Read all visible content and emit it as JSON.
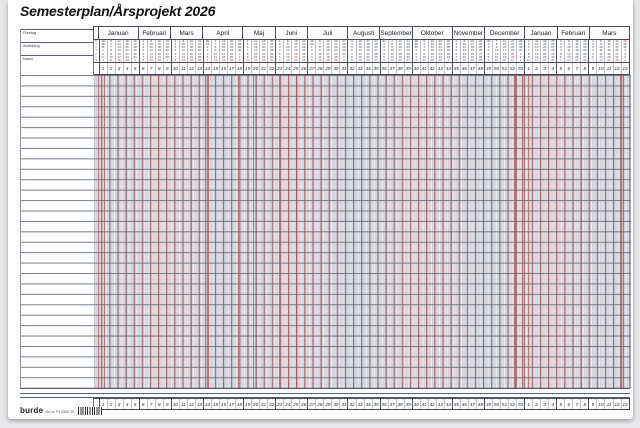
{
  "title": "Semesterplan/Årsprojekt 2026",
  "left_labels": [
    "Företag",
    "Avdelning",
    "Namn"
  ],
  "weekday_initials": [
    "M",
    "T",
    "O",
    "T",
    "F",
    "L",
    "S"
  ],
  "footer": {
    "brand": "burde",
    "artnr": "Art.nr P1 2660 26"
  },
  "colors": {
    "holiday_red": "#c0454d",
    "grid_line": "#596170",
    "saturday_shade": "#d6d9df",
    "sunday_shade": "#e4ced2"
  },
  "calendar": {
    "months": [
      {
        "label": "Januari",
        "weeks": 5
      },
      {
        "label": "Februari",
        "weeks": 4
      },
      {
        "label": "Mars",
        "weeks": 4
      },
      {
        "label": "April",
        "weeks": 5
      },
      {
        "label": "Maj",
        "weeks": 4
      },
      {
        "label": "Juni",
        "weeks": 4
      },
      {
        "label": "Juli",
        "weeks": 5
      },
      {
        "label": "Augusti",
        "weeks": 4
      },
      {
        "label": "September",
        "weeks": 4
      },
      {
        "label": "Oktober",
        "weeks": 5
      },
      {
        "label": "November",
        "weeks": 4
      },
      {
        "label": "December",
        "weeks": 5
      },
      {
        "label": "Januari",
        "weeks": 4
      },
      {
        "label": "Februari",
        "weeks": 4
      },
      {
        "label": "Mars",
        "weeks": 5
      }
    ],
    "weeks": [
      {
        "n": 1,
        "d": [
          "29",
          "30",
          "31",
          "1",
          "2",
          "3",
          "4"
        ],
        "r": [
          3,
          6
        ]
      },
      {
        "n": 2,
        "d": [
          "5",
          "6",
          "7",
          "8",
          "9",
          "10",
          "11"
        ],
        "r": [
          1,
          6
        ]
      },
      {
        "n": 3,
        "d": [
          "12",
          "13",
          "14",
          "15",
          "16",
          "17",
          "18"
        ],
        "r": [
          6
        ]
      },
      {
        "n": 4,
        "d": [
          "19",
          "20",
          "21",
          "22",
          "23",
          "24",
          "25"
        ],
        "r": [
          6
        ]
      },
      {
        "n": 5,
        "d": [
          "26",
          "27",
          "28",
          "29",
          "30",
          "31",
          "1"
        ],
        "r": [
          6
        ]
      },
      {
        "n": 6,
        "d": [
          "2",
          "3",
          "4",
          "5",
          "6",
          "7",
          "8"
        ],
        "r": [
          6
        ]
      },
      {
        "n": 7,
        "d": [
          "9",
          "10",
          "11",
          "12",
          "13",
          "14",
          "15"
        ],
        "r": [
          6
        ]
      },
      {
        "n": 8,
        "d": [
          "16",
          "17",
          "18",
          "19",
          "20",
          "21",
          "22"
        ],
        "r": [
          6
        ]
      },
      {
        "n": 9,
        "d": [
          "23",
          "24",
          "25",
          "26",
          "27",
          "28",
          "1"
        ],
        "r": [
          6
        ]
      },
      {
        "n": 10,
        "d": [
          "2",
          "3",
          "4",
          "5",
          "6",
          "7",
          "8"
        ],
        "r": [
          6
        ]
      },
      {
        "n": 11,
        "d": [
          "9",
          "10",
          "11",
          "12",
          "13",
          "14",
          "15"
        ],
        "r": [
          6
        ]
      },
      {
        "n": 12,
        "d": [
          "16",
          "17",
          "18",
          "19",
          "20",
          "21",
          "22"
        ],
        "r": [
          6
        ]
      },
      {
        "n": 13,
        "d": [
          "23",
          "24",
          "25",
          "26",
          "27",
          "28",
          "29"
        ],
        "r": [
          6
        ]
      },
      {
        "n": 14,
        "d": [
          "30",
          "31",
          "1",
          "2",
          "3",
          "4",
          "5"
        ],
        "r": [
          4,
          6
        ]
      },
      {
        "n": 15,
        "d": [
          "6",
          "7",
          "8",
          "9",
          "10",
          "11",
          "12"
        ],
        "r": [
          0,
          6
        ]
      },
      {
        "n": 16,
        "d": [
          "13",
          "14",
          "15",
          "16",
          "17",
          "18",
          "19"
        ],
        "r": [
          6
        ]
      },
      {
        "n": 17,
        "d": [
          "20",
          "21",
          "22",
          "23",
          "24",
          "25",
          "26"
        ],
        "r": [
          6
        ]
      },
      {
        "n": 18,
        "d": [
          "27",
          "28",
          "29",
          "30",
          "1",
          "2",
          "3"
        ],
        "r": [
          4,
          6
        ]
      },
      {
        "n": 19,
        "d": [
          "4",
          "5",
          "6",
          "7",
          "8",
          "9",
          "10"
        ],
        "r": [
          6
        ]
      },
      {
        "n": 20,
        "d": [
          "11",
          "12",
          "13",
          "14",
          "15",
          "16",
          "17"
        ],
        "r": [
          3,
          6
        ]
      },
      {
        "n": 21,
        "d": [
          "18",
          "19",
          "20",
          "21",
          "22",
          "23",
          "24"
        ],
        "r": [
          6
        ]
      },
      {
        "n": 22,
        "d": [
          "25",
          "26",
          "27",
          "28",
          "29",
          "30",
          "31"
        ],
        "r": [
          6
        ]
      },
      {
        "n": 23,
        "d": [
          "1",
          "2",
          "3",
          "4",
          "5",
          "6",
          "7"
        ],
        "r": [
          5,
          6
        ]
      },
      {
        "n": 24,
        "d": [
          "8",
          "9",
          "10",
          "11",
          "12",
          "13",
          "14"
        ],
        "r": [
          6
        ]
      },
      {
        "n": 25,
        "d": [
          "15",
          "16",
          "17",
          "18",
          "19",
          "20",
          "21"
        ],
        "r": [
          5,
          6
        ]
      },
      {
        "n": 26,
        "d": [
          "22",
          "23",
          "24",
          "25",
          "26",
          "27",
          "28"
        ],
        "r": [
          6
        ]
      },
      {
        "n": 27,
        "d": [
          "29",
          "30",
          "1",
          "2",
          "3",
          "4",
          "5"
        ],
        "r": [
          6
        ]
      },
      {
        "n": 28,
        "d": [
          "6",
          "7",
          "8",
          "9",
          "10",
          "11",
          "12"
        ],
        "r": [
          6
        ]
      },
      {
        "n": 29,
        "d": [
          "13",
          "14",
          "15",
          "16",
          "17",
          "18",
          "19"
        ],
        "r": [
          6
        ]
      },
      {
        "n": 30,
        "d": [
          "20",
          "21",
          "22",
          "23",
          "24",
          "25",
          "26"
        ],
        "r": [
          6
        ]
      },
      {
        "n": 31,
        "d": [
          "27",
          "28",
          "29",
          "30",
          "31",
          "1",
          "2"
        ],
        "r": [
          6
        ]
      },
      {
        "n": 32,
        "d": [
          "3",
          "4",
          "5",
          "6",
          "7",
          "8",
          "9"
        ],
        "r": [
          6
        ]
      },
      {
        "n": 33,
        "d": [
          "10",
          "11",
          "12",
          "13",
          "14",
          "15",
          "16"
        ],
        "r": [
          6
        ]
      },
      {
        "n": 34,
        "d": [
          "17",
          "18",
          "19",
          "20",
          "21",
          "22",
          "23"
        ],
        "r": [
          6
        ]
      },
      {
        "n": 35,
        "d": [
          "24",
          "25",
          "26",
          "27",
          "28",
          "29",
          "30"
        ],
        "r": [
          6
        ]
      },
      {
        "n": 36,
        "d": [
          "31",
          "1",
          "2",
          "3",
          "4",
          "5",
          "6"
        ],
        "r": [
          6
        ]
      },
      {
        "n": 37,
        "d": [
          "7",
          "8",
          "9",
          "10",
          "11",
          "12",
          "13"
        ],
        "r": [
          6
        ]
      },
      {
        "n": 38,
        "d": [
          "14",
          "15",
          "16",
          "17",
          "18",
          "19",
          "20"
        ],
        "r": [
          6
        ]
      },
      {
        "n": 39,
        "d": [
          "21",
          "22",
          "23",
          "24",
          "25",
          "26",
          "27"
        ],
        "r": [
          6
        ]
      },
      {
        "n": 40,
        "d": [
          "28",
          "29",
          "30",
          "1",
          "2",
          "3",
          "4"
        ],
        "r": [
          6
        ]
      },
      {
        "n": 41,
        "d": [
          "5",
          "6",
          "7",
          "8",
          "9",
          "10",
          "11"
        ],
        "r": [
          6
        ]
      },
      {
        "n": 42,
        "d": [
          "12",
          "13",
          "14",
          "15",
          "16",
          "17",
          "18"
        ],
        "r": [
          6
        ]
      },
      {
        "n": 43,
        "d": [
          "19",
          "20",
          "21",
          "22",
          "23",
          "24",
          "25"
        ],
        "r": [
          6
        ]
      },
      {
        "n": 44,
        "d": [
          "26",
          "27",
          "28",
          "29",
          "30",
          "31",
          "1"
        ],
        "r": [
          6
        ]
      },
      {
        "n": 45,
        "d": [
          "2",
          "3",
          "4",
          "5",
          "6",
          "7",
          "8"
        ],
        "r": [
          6
        ]
      },
      {
        "n": 46,
        "d": [
          "9",
          "10",
          "11",
          "12",
          "13",
          "14",
          "15"
        ],
        "r": [
          6
        ]
      },
      {
        "n": 47,
        "d": [
          "16",
          "17",
          "18",
          "19",
          "20",
          "21",
          "22"
        ],
        "r": [
          6
        ]
      },
      {
        "n": 48,
        "d": [
          "23",
          "24",
          "25",
          "26",
          "27",
          "28",
          "29"
        ],
        "r": [
          6
        ]
      },
      {
        "n": 49,
        "d": [
          "30",
          "1",
          "2",
          "3",
          "4",
          "5",
          "6"
        ],
        "r": [
          6
        ]
      },
      {
        "n": 50,
        "d": [
          "7",
          "8",
          "9",
          "10",
          "11",
          "12",
          "13"
        ],
        "r": [
          6
        ]
      },
      {
        "n": 51,
        "d": [
          "14",
          "15",
          "16",
          "17",
          "18",
          "19",
          "20"
        ],
        "r": [
          6
        ]
      },
      {
        "n": 52,
        "d": [
          "21",
          "22",
          "23",
          "24",
          "25",
          "26",
          "27"
        ],
        "r": [
          4,
          5,
          6
        ]
      },
      {
        "n": 53,
        "d": [
          "28",
          "29",
          "30",
          "31",
          "1",
          "2",
          "3"
        ],
        "r": [
          4,
          6
        ]
      },
      {
        "n": 1,
        "d": [
          "4",
          "5",
          "6",
          "7",
          "8",
          "9",
          "10"
        ],
        "r": [
          2,
          6
        ]
      },
      {
        "n": 2,
        "d": [
          "11",
          "12",
          "13",
          "14",
          "15",
          "16",
          "17"
        ],
        "r": [
          6
        ]
      },
      {
        "n": 3,
        "d": [
          "18",
          "19",
          "20",
          "21",
          "22",
          "23",
          "24"
        ],
        "r": [
          6
        ]
      },
      {
        "n": 4,
        "d": [
          "25",
          "26",
          "27",
          "28",
          "29",
          "30",
          "31"
        ],
        "r": [
          6
        ]
      },
      {
        "n": 5,
        "d": [
          "1",
          "2",
          "3",
          "4",
          "5",
          "6",
          "7"
        ],
        "r": [
          6
        ]
      },
      {
        "n": 6,
        "d": [
          "8",
          "9",
          "10",
          "11",
          "12",
          "13",
          "14"
        ],
        "r": [
          6
        ]
      },
      {
        "n": 7,
        "d": [
          "15",
          "16",
          "17",
          "18",
          "19",
          "20",
          "21"
        ],
        "r": [
          6
        ]
      },
      {
        "n": 8,
        "d": [
          "22",
          "23",
          "24",
          "25",
          "26",
          "27",
          "28"
        ],
        "r": [
          6
        ]
      },
      {
        "n": 9,
        "d": [
          "1",
          "2",
          "3",
          "4",
          "5",
          "6",
          "7"
        ],
        "r": [
          6
        ]
      },
      {
        "n": 10,
        "d": [
          "8",
          "9",
          "10",
          "11",
          "12",
          "13",
          "14"
        ],
        "r": [
          6
        ]
      },
      {
        "n": 11,
        "d": [
          "15",
          "16",
          "17",
          "18",
          "19",
          "20",
          "21"
        ],
        "r": [
          6
        ]
      },
      {
        "n": 12,
        "d": [
          "22",
          "23",
          "24",
          "25",
          "26",
          "27",
          "28"
        ],
        "r": [
          4,
          6
        ]
      },
      {
        "n": 13,
        "d": [
          "29",
          "30",
          "31",
          "1",
          "2",
          "3",
          "4"
        ],
        "r": [
          0,
          6
        ]
      }
    ]
  }
}
